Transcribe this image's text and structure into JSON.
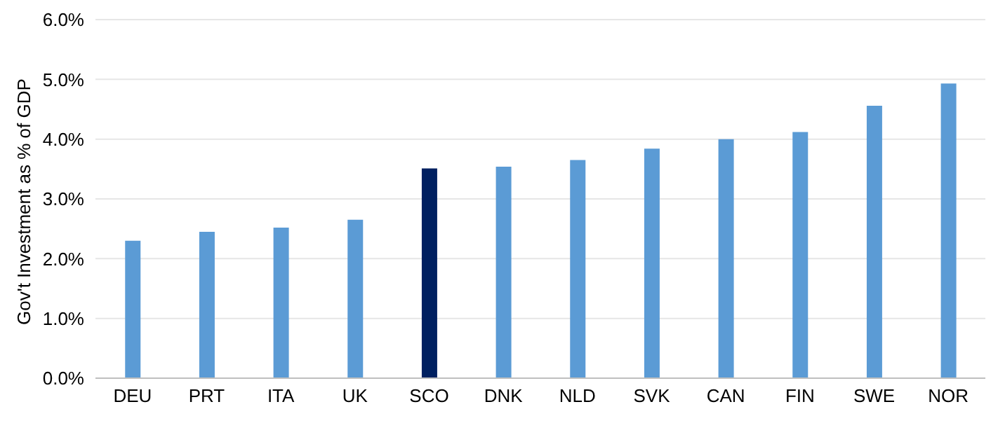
{
  "chart_data": {
    "type": "bar",
    "ylabel": "Gov't Investment as % of GDP",
    "categories": [
      "DEU",
      "PRT",
      "ITA",
      "UK",
      "SCO",
      "DNK",
      "NLD",
      "SVK",
      "CAN",
      "FIN",
      "SWE",
      "NOR"
    ],
    "values": [
      2.3,
      2.45,
      2.52,
      2.65,
      3.51,
      3.54,
      3.65,
      3.84,
      4.0,
      4.12,
      4.56,
      4.93
    ],
    "colors": [
      "#5b9bd5",
      "#5b9bd5",
      "#5b9bd5",
      "#5b9bd5",
      "#002060",
      "#5b9bd5",
      "#5b9bd5",
      "#5b9bd5",
      "#5b9bd5",
      "#5b9bd5",
      "#5b9bd5",
      "#5b9bd5"
    ],
    "ylim": [
      0,
      6
    ],
    "yticks": [
      {
        "value": 0,
        "label": "0.0%"
      },
      {
        "value": 1,
        "label": "1.0%"
      },
      {
        "value": 2,
        "label": "2.0%"
      },
      {
        "value": 3,
        "label": "3.0%"
      },
      {
        "value": 4,
        "label": "4.0%"
      },
      {
        "value": 5,
        "label": "5.0%"
      },
      {
        "value": 6,
        "label": "6.0%"
      }
    ],
    "grid": "y",
    "legend": false
  }
}
